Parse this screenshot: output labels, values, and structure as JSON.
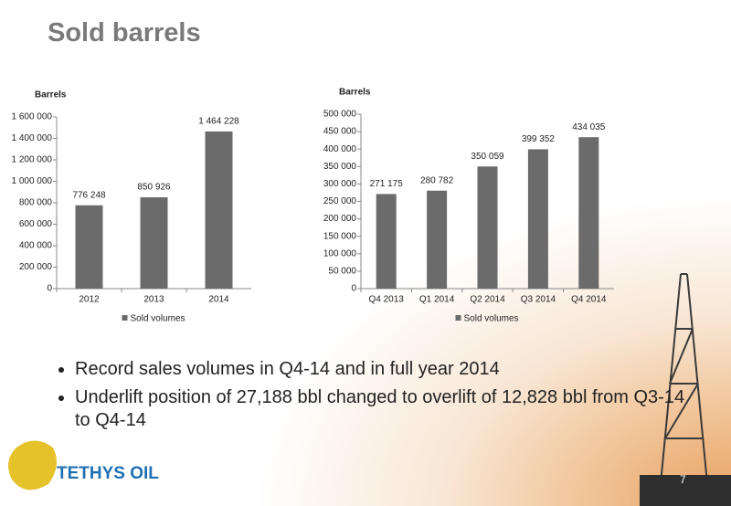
{
  "slide": {
    "title": "Sold barrels",
    "bullets": [
      "Record sales volumes in Q4-14 and in full year 2014",
      "Underlift position of 27,188 bbl changed to overlift of 12,828 bbl from Q3-14 to Q4-14"
    ],
    "logo": "TETHYS OIL",
    "page_number": "7"
  },
  "chart_data": [
    {
      "type": "bar",
      "y_label": "Barrels",
      "categories": [
        "2012",
        "2013",
        "2014"
      ],
      "series": [
        {
          "name": "Sold volumes",
          "color": "#6b6b6b",
          "values": [
            776248,
            850926,
            1464228
          ],
          "value_labels": [
            "776 248",
            "850 926",
            "1 464 228"
          ]
        }
      ],
      "ylim": [
        0,
        1600000
      ],
      "yticks": [
        0,
        {
          "value": 200000,
          "label": "200 000"
        },
        {
          "value": 400000,
          "label": "400 000"
        },
        {
          "value": 600000,
          "label": "600 000"
        },
        {
          "value": 800000,
          "label": "800 000"
        },
        {
          "value": 1000000,
          "label": "1 000 000"
        },
        {
          "value": 1200000,
          "label": "1 200 000"
        },
        {
          "value": 1400000,
          "label": "1 400 000"
        },
        {
          "value": 1600000,
          "label": "1 600 000"
        }
      ],
      "legend": "bottom"
    },
    {
      "type": "bar",
      "y_label": "Barrels",
      "categories": [
        "Q4 2013",
        "Q1 2014",
        "Q2 2014",
        "Q3 2014",
        "Q4 2014"
      ],
      "series": [
        {
          "name": "Sold volumes",
          "color": "#6b6b6b",
          "values": [
            271175,
            280782,
            350059,
            399352,
            434035
          ],
          "value_labels": [
            "271 175",
            "280 782",
            "350 059",
            "399 352",
            "434 035"
          ]
        }
      ],
      "ylim": [
        0,
        500000
      ],
      "yticks": [
        0,
        {
          "value": 50000,
          "label": "50 000"
        },
        {
          "value": 100000,
          "label": "100 000"
        },
        {
          "value": 150000,
          "label": "150 000"
        },
        {
          "value": 200000,
          "label": "200 000"
        },
        {
          "value": 250000,
          "label": "250 000"
        },
        {
          "value": 300000,
          "label": "300 000"
        },
        {
          "value": 350000,
          "label": "350 000"
        },
        {
          "value": 400000,
          "label": "400 000"
        },
        {
          "value": 450000,
          "label": "450 000"
        },
        {
          "value": 500000,
          "label": "500 000"
        }
      ],
      "legend": "bottom"
    }
  ]
}
